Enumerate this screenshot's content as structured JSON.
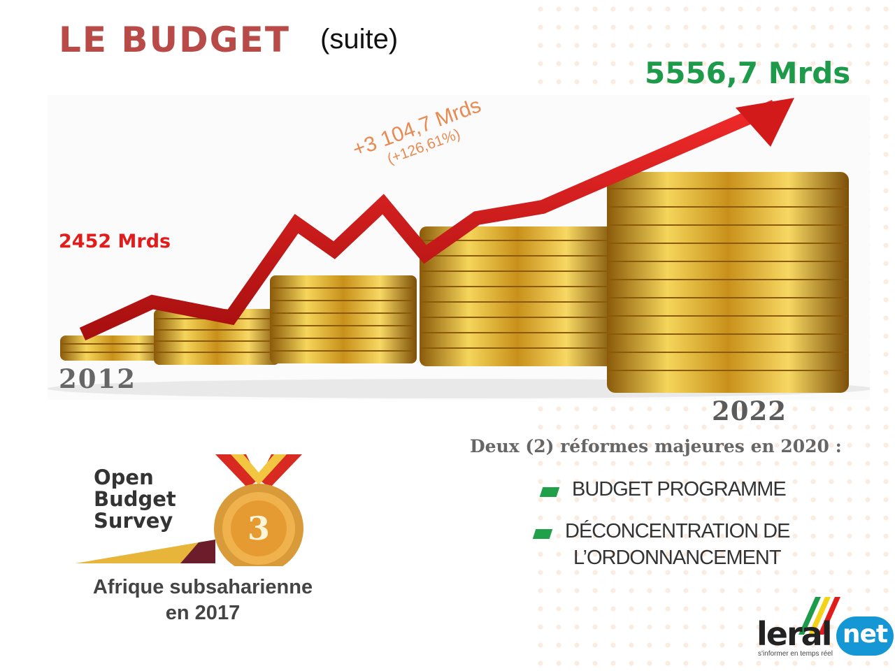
{
  "slide": {
    "title": "LE BUDGET",
    "subtitle": "(suite)",
    "end_value": "5556,7 Mrds",
    "start_value": "2452 Mrds",
    "growth_value": "+3 104,7 Mrds",
    "growth_pct": "(+126,61%)",
    "start_year": "2012",
    "end_year": "2022",
    "reforms_title": "Deux (2) réformes majeures en 2020 :",
    "reforms": [
      "BUDGET PROGRAMME",
      "DÉCONCENTRATION DE",
      "L’ORDONNANCEMENT"
    ],
    "obs_logo": [
      "Open",
      "Budget",
      "Survey"
    ],
    "medal_number": "3",
    "medal_caption_line1": "Afrique subsaharienne",
    "medal_caption_line2": "en 2017"
  },
  "logo": {
    "name": "leral",
    "suffix": "net",
    "tagline": "s'informer en temps réel"
  },
  "colors": {
    "title": "#b84a47",
    "end_value": "#1e9a4b",
    "start_value": "#e21b1b",
    "growth": "#e88a52",
    "arrow": "#d21a1a",
    "coin": "#d9a521",
    "bullet": "#21a04a"
  }
}
